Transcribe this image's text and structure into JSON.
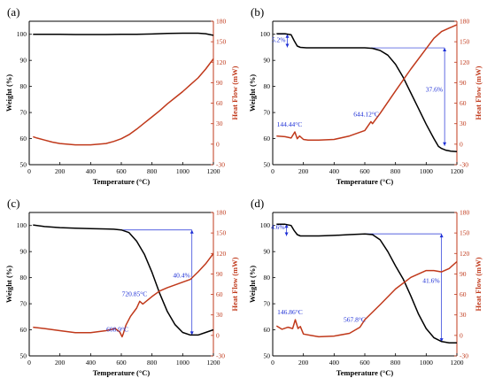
{
  "chart_data": [
    {
      "type": "line",
      "panel_label": "(a)",
      "xlabel": "Temperature (°C)",
      "ylabel_left": "Weight (%)",
      "ylabel_right": "Heat Flow (mW)",
      "xlim": [
        0,
        1200
      ],
      "ylim_left": [
        50,
        105
      ],
      "ylim_right": [
        -30,
        180
      ],
      "xticks": [
        "0",
        "200",
        "400",
        "600",
        "800",
        "1000",
        "1200"
      ],
      "yticks_left": [
        "50",
        "60",
        "70",
        "80",
        "90",
        "100"
      ],
      "yticks_right": [
        "-30",
        "0",
        "30",
        "60",
        "90",
        "120",
        "150",
        "180"
      ],
      "colors": {
        "weight": "#000000",
        "heat_flow": "#c0391b",
        "annotation": "#1d2fd6"
      },
      "series": [
        {
          "axis": "left",
          "color_key": "weight",
          "x": [
            25,
            100,
            200,
            300,
            400,
            500,
            600,
            700,
            800,
            900,
            1000,
            1100,
            1150,
            1200
          ],
          "y": [
            100,
            100,
            100,
            99.9,
            99.9,
            99.9,
            100,
            100,
            100.1,
            100.3,
            100.4,
            100.4,
            100.2,
            99.6
          ]
        },
        {
          "axis": "right",
          "color_key": "heat_flow",
          "x": [
            25,
            50,
            100,
            150,
            200,
            250,
            300,
            350,
            400,
            450,
            500,
            550,
            600,
            650,
            700,
            750,
            800,
            850,
            900,
            950,
            1000,
            1050,
            1100,
            1150,
            1200
          ],
          "y": [
            11,
            9,
            6,
            3,
            1,
            0,
            -1,
            -1,
            -1,
            0,
            1,
            4,
            8,
            14,
            22,
            31,
            40,
            49,
            59,
            68,
            77,
            87,
            97,
            110,
            125
          ]
        }
      ],
      "annotations": []
    },
    {
      "type": "line",
      "panel_label": "(b)",
      "xlabel": "Temperature (°C)",
      "ylabel_left": "Weight (%)",
      "ylabel_right": "Heat Flow (mW)",
      "xlim": [
        0,
        1200
      ],
      "ylim_left": [
        50,
        105
      ],
      "ylim_right": [
        -30,
        180
      ],
      "xticks": [
        "0",
        "200",
        "400",
        "600",
        "800",
        "1000",
        "1200"
      ],
      "yticks_left": [
        "50",
        "60",
        "70",
        "80",
        "90",
        "100"
      ],
      "yticks_right": [
        "-30",
        "0",
        "30",
        "60",
        "90",
        "120",
        "150",
        "180"
      ],
      "series": [
        {
          "axis": "left",
          "color_key": "weight",
          "x": [
            25,
            80,
            120,
            140,
            160,
            180,
            220,
            300,
            400,
            500,
            600,
            650,
            700,
            750,
            800,
            850,
            900,
            950,
            1000,
            1050,
            1080,
            1100,
            1130,
            1160,
            1200
          ],
          "y": [
            100.2,
            100.2,
            99.8,
            97.5,
            95.5,
            95,
            94.8,
            94.8,
            94.8,
            94.8,
            94.8,
            94.6,
            93.8,
            92,
            88.5,
            83.5,
            77.5,
            71.5,
            65.5,
            60,
            57,
            56.2,
            55.5,
            55.2,
            55
          ]
        },
        {
          "axis": "right",
          "color_key": "heat_flow",
          "x": [
            25,
            80,
            120,
            144,
            160,
            175,
            200,
            230,
            300,
            400,
            500,
            600,
            640,
            650,
            700,
            800,
            900,
            1000,
            1050,
            1100,
            1150,
            1200
          ],
          "y": [
            12,
            11,
            9,
            18,
            8,
            12,
            7,
            6,
            6,
            7,
            12,
            20,
            33,
            30,
            45,
            78,
            110,
            140,
            155,
            165,
            170,
            175
          ]
        }
      ],
      "annotations": [
        {
          "text": "144.44°C",
          "x": 144,
          "y": 18
        },
        {
          "text": "644.12°C",
          "x": 644,
          "y": 33
        },
        {
          "text": "5.2%",
          "x": 95,
          "y": 97
        },
        {
          "text": "37.6%",
          "x": 1120,
          "y": 78
        }
      ],
      "guides": [
        {
          "type": "weight_loss_bracket",
          "x_start": 30,
          "x_end": 95,
          "y_from": 100,
          "y_to": 95
        },
        {
          "type": "weight_loss_bracket",
          "x_start": 640,
          "x_end": 1120,
          "y_from": 94.8,
          "y_to": 57.2
        }
      ]
    },
    {
      "type": "line",
      "panel_label": "(c)",
      "xlabel": "Temperature (°C)",
      "ylabel_left": "Weight (%)",
      "ylabel_right": "Heat Flow (mW)",
      "xlim": [
        0,
        1200
      ],
      "ylim_left": [
        50,
        105
      ],
      "ylim_right": [
        -30,
        180
      ],
      "xticks": [
        "0",
        "200",
        "400",
        "600",
        "800",
        "1000",
        "1200"
      ],
      "yticks_left": [
        "50",
        "60",
        "70",
        "80",
        "90",
        "100"
      ],
      "yticks_right": [
        "-30",
        "0",
        "30",
        "60",
        "90",
        "120",
        "150",
        "180"
      ],
      "series": [
        {
          "axis": "left",
          "color_key": "weight",
          "x": [
            25,
            100,
            200,
            300,
            400,
            500,
            550,
            600,
            650,
            700,
            750,
            800,
            850,
            900,
            950,
            1000,
            1050,
            1100,
            1150,
            1200
          ],
          "y": [
            100.2,
            99.6,
            99.2,
            99,
            98.8,
            98.7,
            98.6,
            98.3,
            97.3,
            94,
            89,
            82,
            74,
            67,
            62,
            59,
            58,
            58,
            59,
            60
          ]
        },
        {
          "axis": "right",
          "color_key": "heat_flow",
          "x": [
            25,
            100,
            200,
            300,
            400,
            500,
            560,
            590,
            605,
            612,
            630,
            660,
            700,
            720,
            740,
            800,
            850,
            900,
            950,
            1000,
            1050,
            1100,
            1150,
            1200
          ],
          "y": [
            12,
            10,
            7,
            4,
            4,
            7,
            10,
            5,
            -2,
            2,
            15,
            28,
            40,
            50,
            46,
            57,
            65,
            70,
            74,
            78,
            82,
            93,
            105,
            120
          ]
        }
      ],
      "annotations": [
        {
          "text": "608.9°C",
          "x": 609,
          "y": -2
        },
        {
          "text": "720.85°C",
          "x": 721,
          "y": 50
        },
        {
          "text": "40.4%",
          "x": 1060,
          "y": 80
        }
      ],
      "guides": [
        {
          "type": "weight_loss_bracket",
          "x_start": 600,
          "x_end": 1060,
          "y_from": 98.3,
          "y_to": 58
        }
      ]
    },
    {
      "type": "line",
      "panel_label": "(d)",
      "xlabel": "Temperature (°C)",
      "ylabel_left": "Weight (%)",
      "ylabel_right": "Heat Flow (mW)",
      "xlim": [
        0,
        1200
      ],
      "ylim_left": [
        50,
        105
      ],
      "ylim_right": [
        -30,
        180
      ],
      "xticks": [
        "0",
        "200",
        "400",
        "600",
        "800",
        "1000",
        "1200"
      ],
      "yticks_left": [
        "50",
        "60",
        "70",
        "80",
        "90",
        "100"
      ],
      "yticks_right": [
        "-30",
        "0",
        "30",
        "60",
        "90",
        "120",
        "150",
        "180"
      ],
      "series": [
        {
          "axis": "left",
          "color_key": "weight",
          "x": [
            25,
            80,
            120,
            140,
            160,
            180,
            220,
            300,
            400,
            500,
            600,
            650,
            700,
            750,
            800,
            850,
            900,
            950,
            1000,
            1050,
            1100,
            1150,
            1200
          ],
          "y": [
            100.5,
            100.5,
            100,
            98,
            96.5,
            96,
            96,
            96,
            96.2,
            96.5,
            96.8,
            96.5,
            94.5,
            90,
            84.5,
            79.5,
            73,
            66,
            60.5,
            57,
            55.5,
            55,
            55
          ]
        },
        {
          "axis": "right",
          "color_key": "heat_flow",
          "x": [
            25,
            60,
            100,
            130,
            147,
            165,
            180,
            200,
            250,
            300,
            400,
            500,
            568,
            600,
            700,
            800,
            900,
            1000,
            1050,
            1100,
            1150,
            1200
          ],
          "y": [
            14,
            9,
            12,
            10,
            23,
            10,
            13,
            2,
            0,
            -2,
            -1,
            3,
            12,
            23,
            45,
            68,
            85,
            95,
            95,
            93,
            98,
            108
          ]
        }
      ],
      "annotations": [
        {
          "text": "146.86°C",
          "x": 147,
          "y": 23
        },
        {
          "text": "567.8°C",
          "x": 568,
          "y": 12
        },
        {
          "text": "4.6%",
          "x": 90,
          "y": 98.5
        },
        {
          "text": "41.6%",
          "x": 1100,
          "y": 78
        }
      ],
      "guides": [
        {
          "type": "weight_loss_bracket",
          "x_start": 30,
          "x_end": 90,
          "y_from": 100.5,
          "y_to": 96
        },
        {
          "type": "weight_loss_bracket",
          "x_start": 600,
          "x_end": 1100,
          "y_from": 96.8,
          "y_to": 55.4
        }
      ]
    }
  ]
}
